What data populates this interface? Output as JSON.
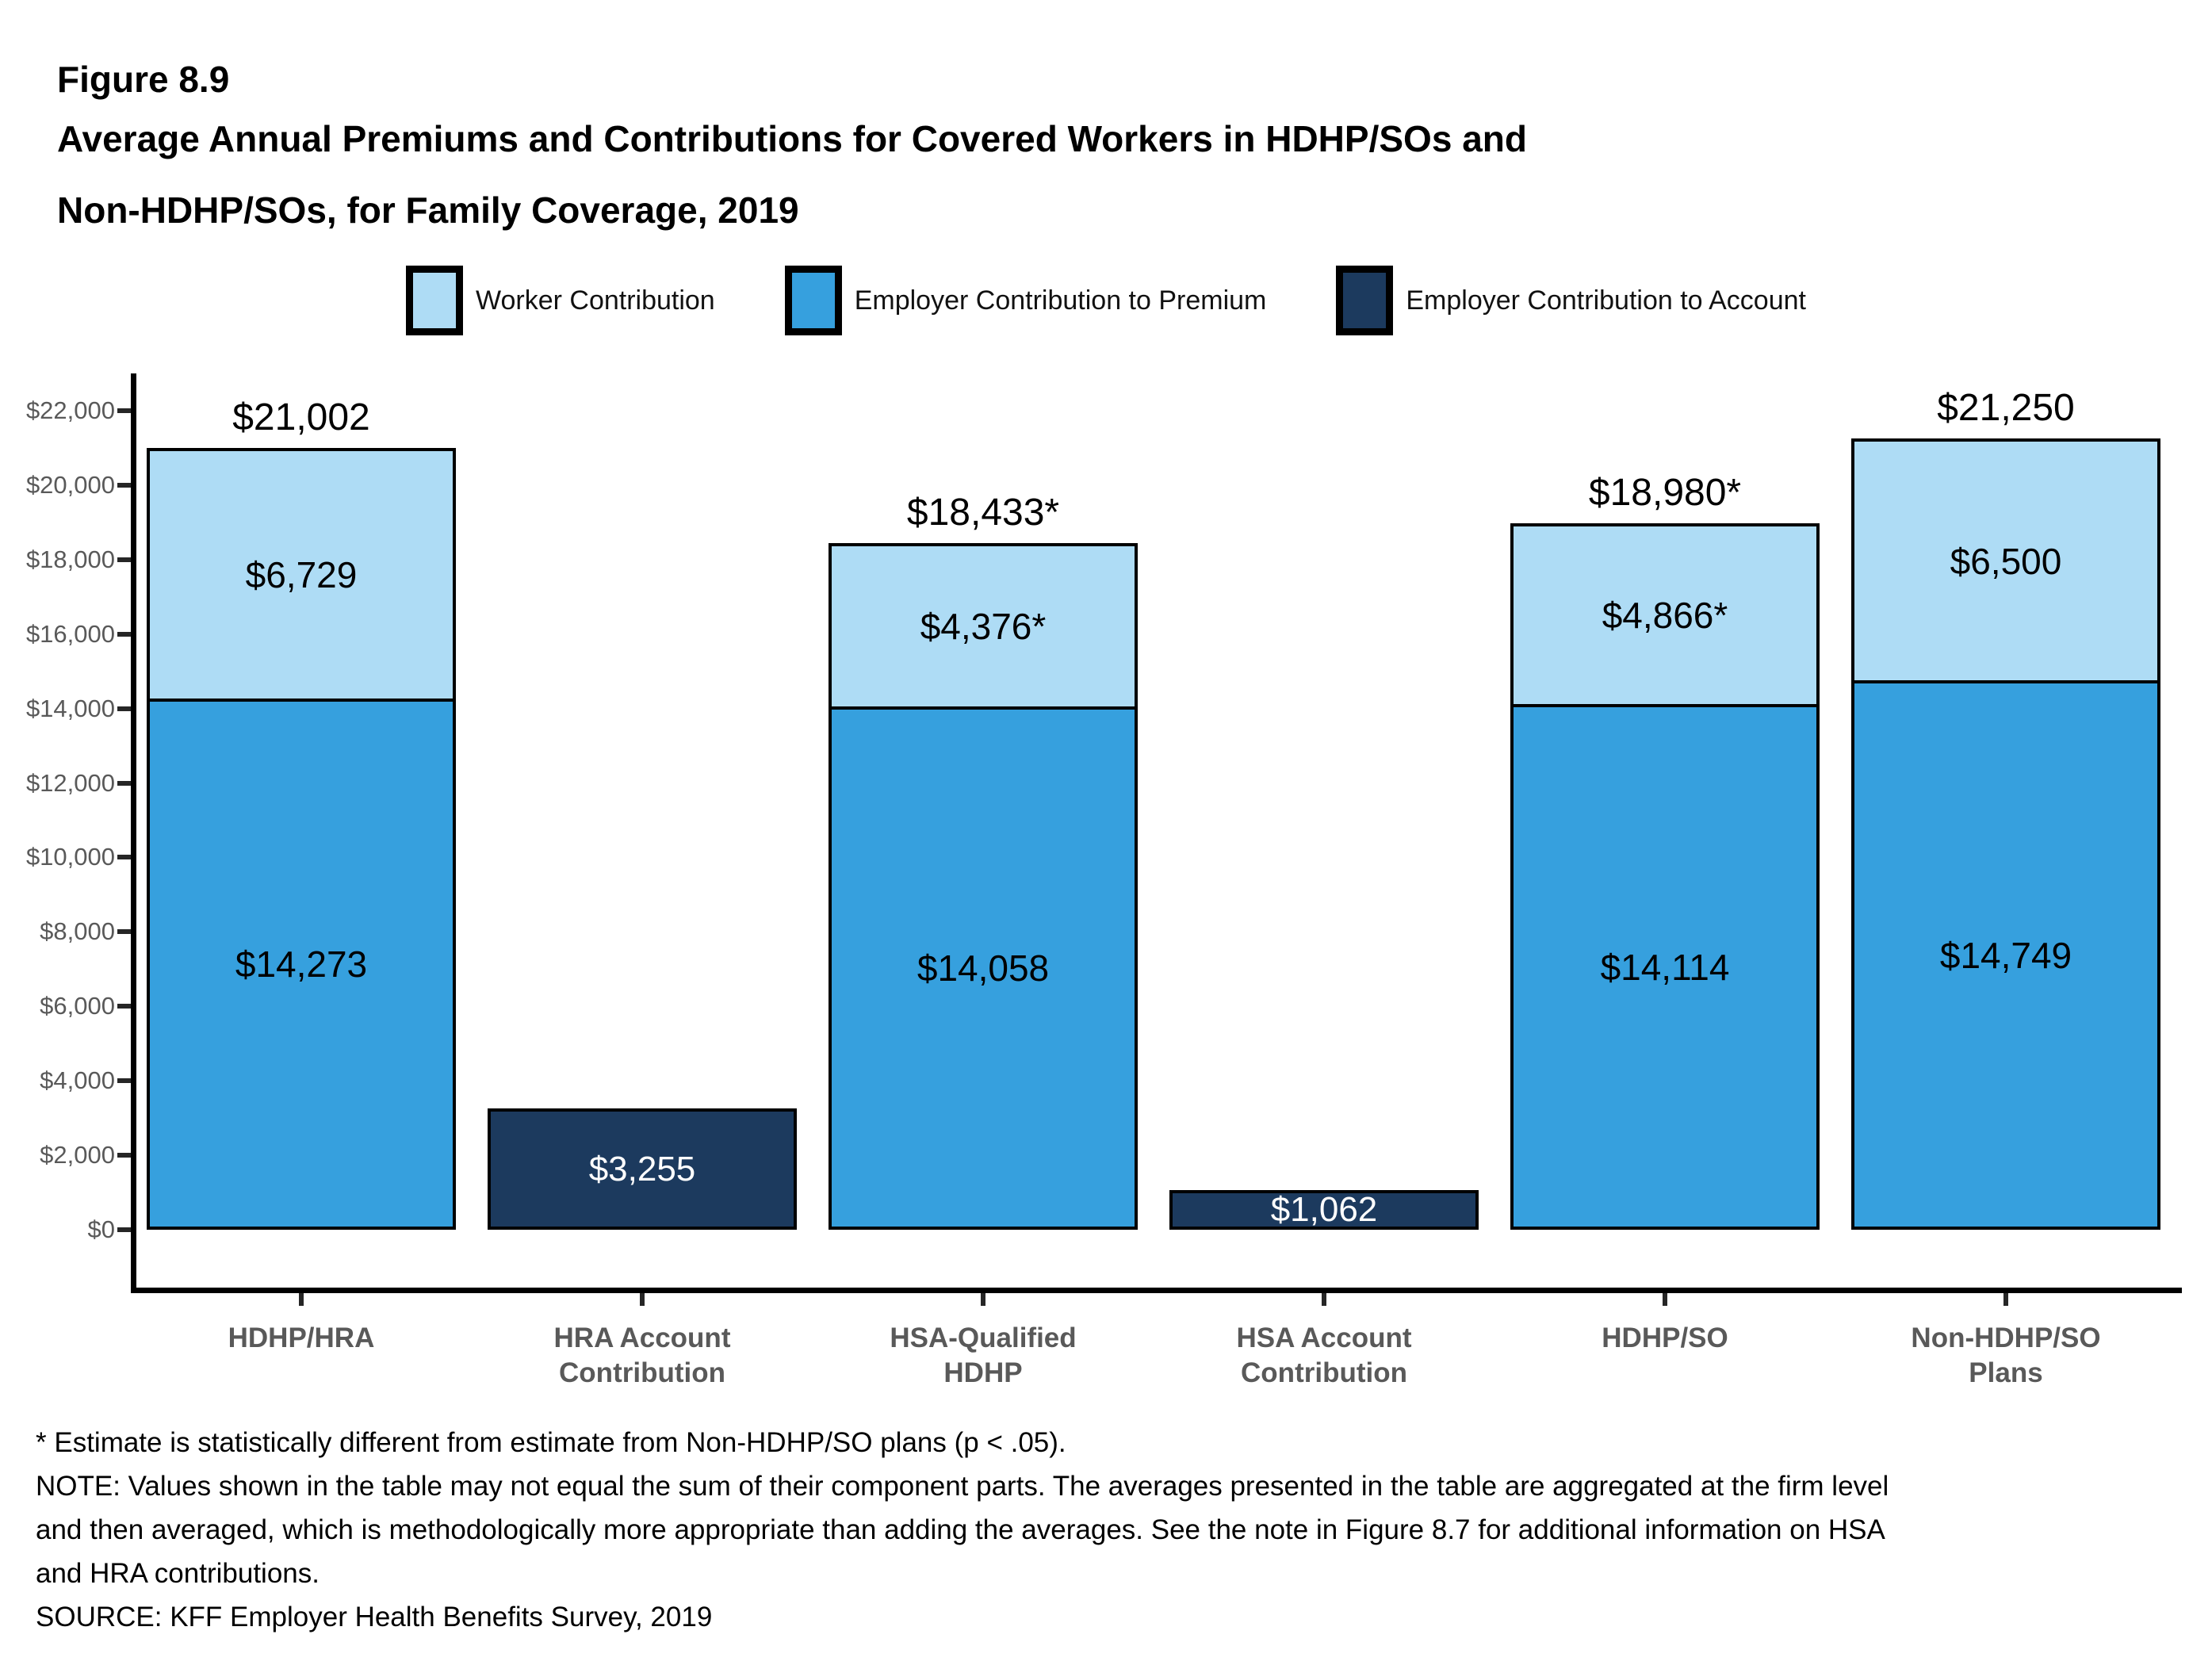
{
  "figure": {
    "number": "Figure 8.9",
    "title_line1": "Average Annual Premiums and Contributions for Covered Workers in HDHP/SOs and",
    "title_line2": "Non-HDHP/SOs, for Family Coverage, 2019"
  },
  "legend": [
    {
      "label": "Worker Contribution",
      "color": "#AEDCF5"
    },
    {
      "label": "Employer Contribution to Premium",
      "color": "#36A0DE"
    },
    {
      "label": "Employer Contribution to Account",
      "color": "#1C3A5E"
    }
  ],
  "colors": {
    "worker": "#AEDCF5",
    "employer_premium": "#36A0DE",
    "employer_account": "#1C3A5E",
    "axis": "#000000",
    "tick_text": "#595959",
    "category_text": "#595959"
  },
  "chart_data": {
    "type": "bar",
    "stacked": true,
    "title": "Average Annual Premiums and Contributions for Covered Workers in HDHP/SOs and Non-HDHP/SOs, for Family Coverage, 2019",
    "xlabel": "",
    "ylabel": "",
    "ylim": [
      0,
      22000
    ],
    "ytick_step": 2000,
    "ytick_labels": [
      "$0",
      "$2,000",
      "$4,000",
      "$6,000",
      "$8,000",
      "$10,000",
      "$12,000",
      "$14,000",
      "$16,000",
      "$18,000",
      "$20,000",
      "$22,000"
    ],
    "grid": false,
    "legend_position": "top",
    "categories": [
      "HDHP/HRA",
      "HRA Account\nContribution",
      "HSA-Qualified\nHDHP",
      "HSA Account\nContribution",
      "HDHP/SO",
      "Non-HDHP/SO\nPlans"
    ],
    "bars": [
      {
        "category": "HDHP/HRA",
        "total_label": "$21,002",
        "total_value": 21002,
        "segments": [
          {
            "series": "Employer Contribution to Premium",
            "value": 14273,
            "label": "$14,273"
          },
          {
            "series": "Worker Contribution",
            "value": 6729,
            "label": "$6,729"
          }
        ]
      },
      {
        "category": "HRA Account\nContribution",
        "total_label": "",
        "total_value": 3255,
        "segments": [
          {
            "series": "Employer Contribution to Account",
            "value": 3255,
            "label": "$3,255"
          }
        ]
      },
      {
        "category": "HSA-Qualified\nHDHP",
        "total_label": "$18,433*",
        "total_value": 18433,
        "segments": [
          {
            "series": "Employer Contribution to Premium",
            "value": 14058,
            "label": "$14,058"
          },
          {
            "series": "Worker Contribution",
            "value": 4376,
            "label": "$4,376*"
          }
        ]
      },
      {
        "category": "HSA Account\nContribution",
        "total_label": "",
        "total_value": 1062,
        "segments": [
          {
            "series": "Employer Contribution to Account",
            "value": 1062,
            "label": "$1,062"
          }
        ]
      },
      {
        "category": "HDHP/SO",
        "total_label": "$18,980*",
        "total_value": 18980,
        "segments": [
          {
            "series": "Employer Contribution to Premium",
            "value": 14114,
            "label": "$14,114"
          },
          {
            "series": "Worker Contribution",
            "value": 4866,
            "label": "$4,866*"
          }
        ]
      },
      {
        "category": "Non-HDHP/SO\nPlans",
        "total_label": "$21,250",
        "total_value": 21250,
        "segments": [
          {
            "series": "Employer Contribution to Premium",
            "value": 14749,
            "label": "$14,749"
          },
          {
            "series": "Worker Contribution",
            "value": 6500,
            "label": "$6,500"
          }
        ]
      }
    ]
  },
  "footnotes": {
    "asterisk": "* Estimate is statistically different from estimate from Non-HDHP/SO plans (p < .05).",
    "note_lines": [
      "NOTE: Values shown in the table may not equal the sum of their component parts. The averages presented in the table are aggregated at the firm level",
      "and then averaged, which is methodologically more appropriate than adding the averages. See the note in Figure 8.7 for additional information on HSA",
      "and HRA contributions."
    ],
    "source": "SOURCE: KFF Employer Health Benefits Survey, 2019"
  }
}
